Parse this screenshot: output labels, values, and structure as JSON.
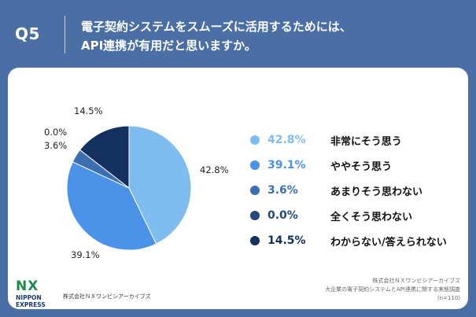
{
  "header": {
    "question": "Q5",
    "title_line1": "電子契約システムをスムーズに活用するためには、",
    "title_line2": "API連携が有用だと思いますか。"
  },
  "chart_data": {
    "type": "pie",
    "title": "",
    "slices": [
      {
        "label": "非常にそう思う",
        "value": 42.8,
        "display": "42.8%",
        "color": "#7fbcf0"
      },
      {
        "label": "ややそう思う",
        "value": 39.1,
        "display": "39.1%",
        "color": "#4a93e8"
      },
      {
        "label": "あまりそう思わない",
        "value": 3.6,
        "display": "3.6%",
        "color": "#3b6fb1"
      },
      {
        "label": "全くそう思わない",
        "value": 0.0,
        "display": "0.0%",
        "color": "#24487d"
      },
      {
        "label": "わからない/答えられない",
        "value": 14.5,
        "display": "14.5%",
        "color": "#14305e"
      }
    ],
    "legend_position": "right"
  },
  "footer": {
    "logo_mark": "NX",
    "logo_line1": "NIPPON",
    "logo_line2": "EXPRESS",
    "company": "株式会社ＮＸワンビシアーカイブズ",
    "source_line1": "株式会社ＮＸワンビシアーカイブズ",
    "source_line2": "大企業の電子契約システムとAPI連携に関する実態調査",
    "source_line3": "(n=110)"
  }
}
